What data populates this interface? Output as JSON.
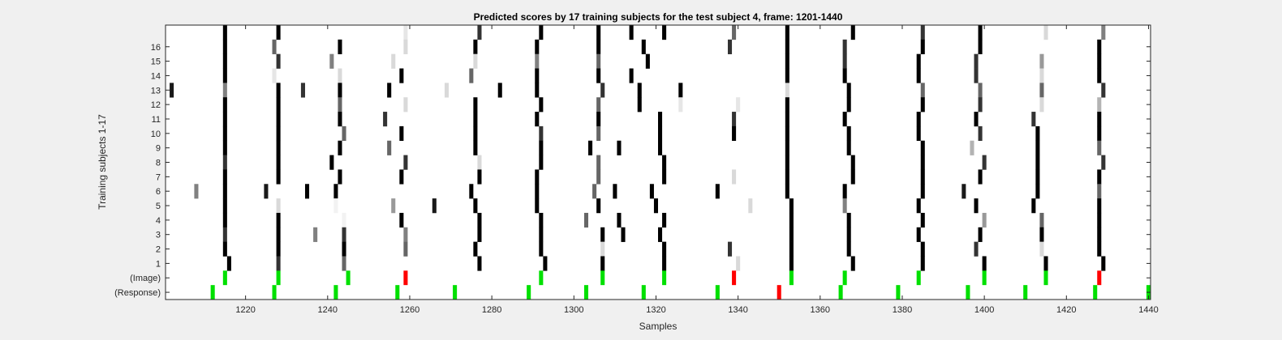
{
  "chart_data": {
    "type": "heatmap",
    "title": "Predicted scores by 17 training subjects for the test subject 4, frame: 1201-1440",
    "xlabel": "Samples",
    "ylabel": "Training subjects 1-17",
    "xlim": [
      1201,
      1440
    ],
    "x_ticks": [
      "1220",
      "1240",
      "1260",
      "1280",
      "1300",
      "1320",
      "1340",
      "1360",
      "1380",
      "1400",
      "1420",
      "1440"
    ],
    "x_tick_values": [
      1220,
      1240,
      1260,
      1280,
      1300,
      1320,
      1340,
      1360,
      1380,
      1400,
      1420,
      1440
    ],
    "y_ticks": [
      "16",
      "15",
      "14",
      "13",
      "12",
      "11",
      "10",
      "9",
      "8",
      "7",
      "6",
      "5",
      "4",
      "3",
      "2",
      "1",
      "(Image)",
      "(Response)"
    ],
    "grid": false,
    "colors": {
      "background": "#ffffff",
      "true_marker": "#00e000",
      "false_marker": "#ff0000"
    },
    "score_rows": [
      {
        "label": "17",
        "cells": [
          [
            1215,
            1
          ],
          [
            1228,
            1
          ],
          [
            1259,
            0.1
          ],
          [
            1277,
            0.8
          ],
          [
            1292,
            1
          ],
          [
            1306,
            1
          ],
          [
            1314,
            1
          ],
          [
            1322,
            1
          ],
          [
            1339,
            0.6
          ],
          [
            1352,
            1
          ],
          [
            1368,
            1
          ],
          [
            1385,
            0.8
          ],
          [
            1399,
            1
          ],
          [
            1415,
            0.15
          ],
          [
            1429,
            0.5
          ]
        ]
      },
      {
        "label": "16",
        "cells": [
          [
            1215,
            1
          ],
          [
            1227,
            0.6
          ],
          [
            1243,
            1
          ],
          [
            1259,
            0.15
          ],
          [
            1276,
            1
          ],
          [
            1291,
            1
          ],
          [
            1306,
            1
          ],
          [
            1317,
            1
          ],
          [
            1338,
            0.8
          ],
          [
            1352,
            1
          ],
          [
            1366,
            0.8
          ],
          [
            1385,
            1
          ],
          [
            1399,
            1
          ],
          [
            1428,
            1
          ]
        ]
      },
      {
        "label": "15",
        "cells": [
          [
            1215,
            1
          ],
          [
            1228,
            0.8
          ],
          [
            1241,
            0.5
          ],
          [
            1256,
            0.15
          ],
          [
            1276,
            0.15
          ],
          [
            1291,
            0.5
          ],
          [
            1306,
            0.6
          ],
          [
            1318,
            1
          ],
          [
            1352,
            1
          ],
          [
            1366,
            0.8
          ],
          [
            1384,
            1
          ],
          [
            1398,
            0.8
          ],
          [
            1414,
            0.4
          ],
          [
            1428,
            1
          ]
        ]
      },
      {
        "label": "14",
        "cells": [
          [
            1215,
            1
          ],
          [
            1227,
            0.1
          ],
          [
            1243,
            0.15
          ],
          [
            1258,
            1
          ],
          [
            1275,
            0.6
          ],
          [
            1291,
            1
          ],
          [
            1306,
            1
          ],
          [
            1314,
            1
          ],
          [
            1352,
            1
          ],
          [
            1366,
            1
          ],
          [
            1384,
            1
          ],
          [
            1398,
            0.8
          ],
          [
            1414,
            0.15
          ],
          [
            1428,
            1
          ]
        ]
      },
      {
        "label": "13",
        "cells": [
          [
            1202,
            0.9
          ],
          [
            1215,
            0.5
          ],
          [
            1228,
            1
          ],
          [
            1234,
            0.8
          ],
          [
            1243,
            1
          ],
          [
            1255,
            1
          ],
          [
            1269,
            0.15
          ],
          [
            1282,
            1
          ],
          [
            1291,
            1
          ],
          [
            1307,
            0.8
          ],
          [
            1316,
            1
          ],
          [
            1326,
            1
          ],
          [
            1352,
            0.15
          ],
          [
            1367,
            1
          ],
          [
            1385,
            0.6
          ],
          [
            1399,
            0.6
          ],
          [
            1414,
            0.6
          ],
          [
            1429,
            0.8
          ]
        ]
      },
      {
        "label": "12",
        "cells": [
          [
            1215,
            1
          ],
          [
            1228,
            1
          ],
          [
            1243,
            0.6
          ],
          [
            1259,
            0.15
          ],
          [
            1276,
            1
          ],
          [
            1292,
            1
          ],
          [
            1306,
            0.6
          ],
          [
            1316,
            1
          ],
          [
            1326,
            0.1
          ],
          [
            1340,
            0.1
          ],
          [
            1352,
            1
          ],
          [
            1367,
            1
          ],
          [
            1385,
            1
          ],
          [
            1399,
            0.8
          ],
          [
            1414,
            0.15
          ],
          [
            1428,
            0.3
          ]
        ]
      },
      {
        "label": "11",
        "cells": [
          [
            1215,
            1
          ],
          [
            1228,
            1
          ],
          [
            1243,
            1
          ],
          [
            1254,
            0.8
          ],
          [
            1276,
            1
          ],
          [
            1291,
            1
          ],
          [
            1306,
            1
          ],
          [
            1321,
            1
          ],
          [
            1339,
            0.8
          ],
          [
            1352,
            1
          ],
          [
            1366,
            1
          ],
          [
            1384,
            1
          ],
          [
            1398,
            1
          ],
          [
            1412,
            0.8
          ],
          [
            1428,
            1
          ]
        ]
      },
      {
        "label": "10",
        "cells": [
          [
            1215,
            1
          ],
          [
            1228,
            1
          ],
          [
            1244,
            0.6
          ],
          [
            1258,
            1
          ],
          [
            1276,
            1
          ],
          [
            1292,
            0.8
          ],
          [
            1306,
            0.6
          ],
          [
            1321,
            1
          ],
          [
            1339,
            1
          ],
          [
            1352,
            1
          ],
          [
            1367,
            1
          ],
          [
            1384,
            1
          ],
          [
            1399,
            0.8
          ],
          [
            1413,
            1
          ],
          [
            1428,
            1
          ]
        ]
      },
      {
        "label": "9",
        "cells": [
          [
            1215,
            1
          ],
          [
            1228,
            1
          ],
          [
            1243,
            1
          ],
          [
            1255,
            0.6
          ],
          [
            1276,
            1
          ],
          [
            1292,
            1
          ],
          [
            1304,
            1
          ],
          [
            1311,
            1
          ],
          [
            1321,
            1
          ],
          [
            1352,
            1
          ],
          [
            1367,
            1
          ],
          [
            1385,
            1
          ],
          [
            1397,
            0.3
          ],
          [
            1413,
            1
          ],
          [
            1428,
            0.6
          ]
        ]
      },
      {
        "label": "8",
        "cells": [
          [
            1215,
            0.8
          ],
          [
            1228,
            1
          ],
          [
            1241,
            1
          ],
          [
            1259,
            0.8
          ],
          [
            1277,
            0.15
          ],
          [
            1292,
            1
          ],
          [
            1306,
            0.6
          ],
          [
            1322,
            1
          ],
          [
            1352,
            1
          ],
          [
            1368,
            1
          ],
          [
            1385,
            1
          ],
          [
            1400,
            0.8
          ],
          [
            1413,
            1
          ],
          [
            1429,
            0.8
          ]
        ]
      },
      {
        "label": "7",
        "cells": [
          [
            1215,
            1
          ],
          [
            1228,
            1
          ],
          [
            1243,
            1
          ],
          [
            1258,
            1
          ],
          [
            1277,
            1
          ],
          [
            1291,
            1
          ],
          [
            1306,
            0.6
          ],
          [
            1322,
            1
          ],
          [
            1339,
            0.15
          ],
          [
            1352,
            1
          ],
          [
            1368,
            1
          ],
          [
            1385,
            1
          ],
          [
            1399,
            1
          ],
          [
            1413,
            1
          ],
          [
            1428,
            1
          ]
        ]
      },
      {
        "label": "6",
        "cells": [
          [
            1208,
            0.5
          ],
          [
            1215,
            1
          ],
          [
            1225,
            0.9
          ],
          [
            1235,
            1
          ],
          [
            1242,
            1
          ],
          [
            1275,
            1
          ],
          [
            1291,
            1
          ],
          [
            1305,
            0.6
          ],
          [
            1310,
            1
          ],
          [
            1319,
            1
          ],
          [
            1335,
            1
          ],
          [
            1352,
            1
          ],
          [
            1366,
            1
          ],
          [
            1385,
            1
          ],
          [
            1395,
            0.9
          ],
          [
            1413,
            1
          ],
          [
            1428,
            0.6
          ]
        ]
      },
      {
        "label": "5",
        "cells": [
          [
            1215,
            1
          ],
          [
            1228,
            0.15
          ],
          [
            1242,
            0.05
          ],
          [
            1256,
            0.4
          ],
          [
            1266,
            0.9
          ],
          [
            1276,
            1
          ],
          [
            1291,
            1
          ],
          [
            1306,
            1
          ],
          [
            1320,
            1
          ],
          [
            1343,
            0.15
          ],
          [
            1353,
            1
          ],
          [
            1366,
            0.5
          ],
          [
            1384,
            1
          ],
          [
            1398,
            1
          ],
          [
            1412,
            1
          ],
          [
            1428,
            1
          ]
        ]
      },
      {
        "label": "4",
        "cells": [
          [
            1215,
            1
          ],
          [
            1228,
            1
          ],
          [
            1244,
            0.05
          ],
          [
            1258,
            1
          ],
          [
            1277,
            1
          ],
          [
            1292,
            1
          ],
          [
            1303,
            0.6
          ],
          [
            1311,
            1
          ],
          [
            1322,
            1
          ],
          [
            1353,
            1
          ],
          [
            1367,
            1
          ],
          [
            1385,
            1
          ],
          [
            1400,
            0.4
          ],
          [
            1414,
            0.6
          ],
          [
            1428,
            1
          ]
        ]
      },
      {
        "label": "3",
        "cells": [
          [
            1215,
            0.8
          ],
          [
            1228,
            1
          ],
          [
            1237,
            0.5
          ],
          [
            1244,
            0.8
          ],
          [
            1259,
            0.5
          ],
          [
            1277,
            1
          ],
          [
            1292,
            1
          ],
          [
            1307,
            1
          ],
          [
            1312,
            1
          ],
          [
            1321,
            1
          ],
          [
            1353,
            1
          ],
          [
            1367,
            1
          ],
          [
            1384,
            1
          ],
          [
            1399,
            1
          ],
          [
            1414,
            1
          ],
          [
            1428,
            1
          ]
        ]
      },
      {
        "label": "2",
        "cells": [
          [
            1215,
            1
          ],
          [
            1228,
            1
          ],
          [
            1244,
            1
          ],
          [
            1259,
            0.6
          ],
          [
            1276,
            1
          ],
          [
            1292,
            1
          ],
          [
            1307,
            0.15
          ],
          [
            1322,
            1
          ],
          [
            1338,
            0.8
          ],
          [
            1353,
            1
          ],
          [
            1367,
            1
          ],
          [
            1385,
            1
          ],
          [
            1398,
            0.8
          ],
          [
            1414,
            0.15
          ],
          [
            1428,
            1
          ]
        ]
      },
      {
        "label": "1",
        "cells": [
          [
            1216,
            1
          ],
          [
            1228,
            0.8
          ],
          [
            1244,
            0.6
          ],
          [
            1277,
            1
          ],
          [
            1293,
            1
          ],
          [
            1307,
            1
          ],
          [
            1322,
            1
          ],
          [
            1340,
            0.15
          ],
          [
            1353,
            1
          ],
          [
            1368,
            1
          ],
          [
            1385,
            1
          ],
          [
            1400,
            1
          ],
          [
            1415,
            1
          ],
          [
            1429,
            1
          ]
        ]
      }
    ],
    "image_row": {
      "label": "(Image)",
      "green": [
        1215,
        1228,
        1245,
        1292,
        1307,
        1322,
        1353,
        1366,
        1384,
        1400,
        1415
      ],
      "red": [
        1259,
        1339,
        1428
      ]
    },
    "response_row": {
      "label": "(Response)",
      "green": [
        1212,
        1227,
        1242,
        1257,
        1271,
        1289,
        1303,
        1317,
        1335,
        1365,
        1379,
        1396,
        1410,
        1427,
        1440
      ],
      "red": [
        1350
      ]
    }
  }
}
